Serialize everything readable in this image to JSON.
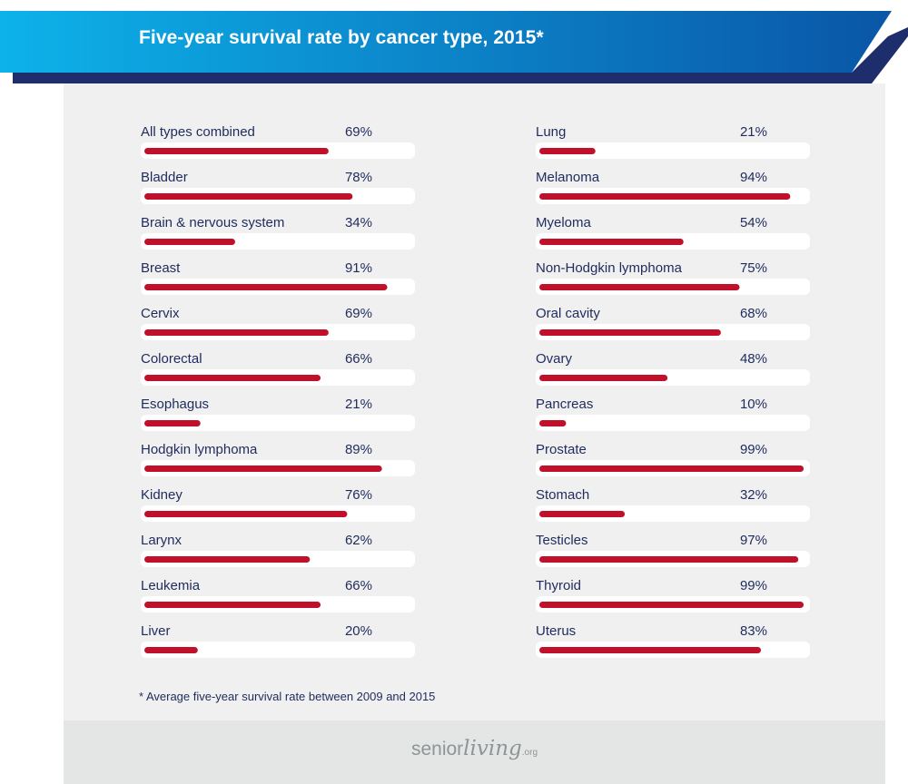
{
  "title": "Five-year survival rate by cancer type, 2015*",
  "footnote": "* Average five-year survival rate between 2009 and 2015",
  "logo": {
    "part1": "senior",
    "part2": "living",
    "part3": ".org"
  },
  "colors": {
    "banner_light": "#0db2ea",
    "banner_dark": "#0a56a7",
    "banner_shadow": "#1e2d6b",
    "panel": "#f0f0f0",
    "track": "#ffffff",
    "bar": "#c0102a",
    "label": "#1f2b5c",
    "footer": "#e4e6e6",
    "logo_text": "#8f9596"
  },
  "chart_data": [
    {
      "type": "bar",
      "orientation": "horizontal",
      "xlim": [
        0,
        100
      ],
      "grid": false,
      "categories": [
        "All types combined",
        "Bladder",
        "Brain & nervous system",
        "Breast",
        "Cervix",
        "Colorectal",
        "Esophagus",
        "Hodgkin lymphoma",
        "Kidney",
        "Larynx",
        "Leukemia",
        "Liver"
      ],
      "values": [
        69,
        78,
        34,
        91,
        69,
        66,
        21,
        89,
        76,
        62,
        66,
        20
      ],
      "value_labels": [
        "69%",
        "78%",
        "34%",
        "91%",
        "69%",
        "66%",
        "21%",
        "89%",
        "76%",
        "62%",
        "66%",
        "20%"
      ]
    },
    {
      "type": "bar",
      "orientation": "horizontal",
      "xlim": [
        0,
        100
      ],
      "grid": false,
      "categories": [
        "Lung",
        "Melanoma",
        "Myeloma",
        "Non-Hodgkin lymphoma",
        "Oral cavity",
        "Ovary",
        "Pancreas",
        "Prostate",
        "Stomach",
        "Testicles",
        "Thyroid",
        "Uterus"
      ],
      "values": [
        21,
        94,
        54,
        75,
        68,
        48,
        10,
        99,
        32,
        97,
        99,
        83
      ],
      "value_labels": [
        "21%",
        "94%",
        "54%",
        "75%",
        "68%",
        "48%",
        "10%",
        "99%",
        "32%",
        "97%",
        "99%",
        "83%"
      ]
    }
  ]
}
